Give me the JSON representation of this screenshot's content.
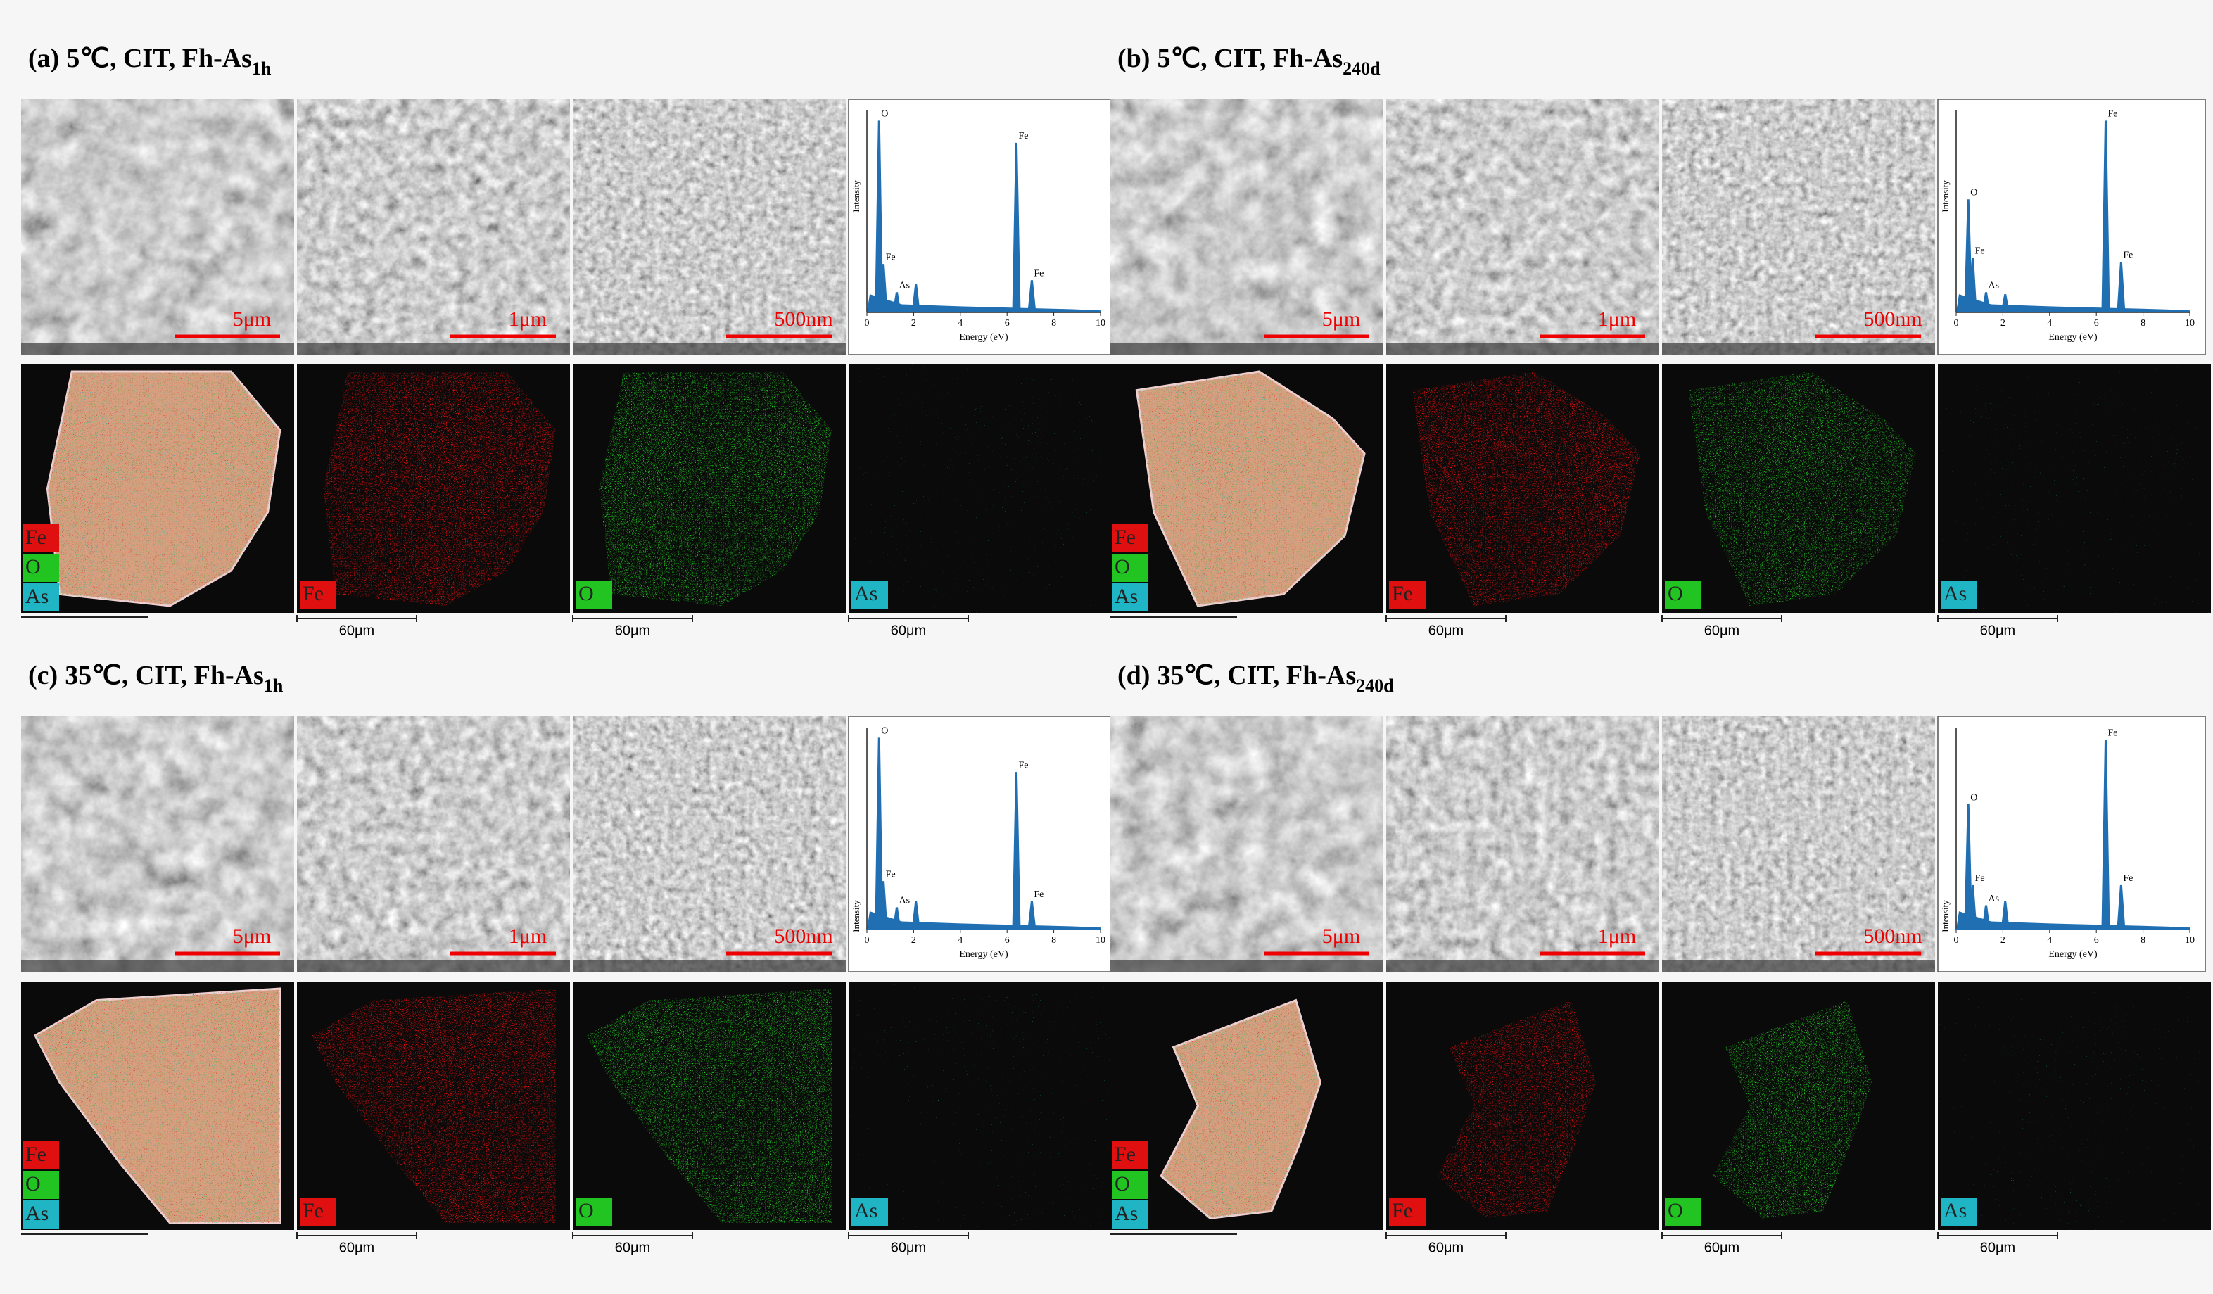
{
  "panels": [
    {
      "label": "(a)",
      "title": "5℃, CIT, Fh-As",
      "subscript": "1h",
      "sem_scale_bars": [
        "5μm",
        "1μm",
        "500nm"
      ],
      "eds": {
        "ylabel": "Intensity",
        "xlabel": "Energy (eV)",
        "xlim": [
          0,
          10
        ],
        "xticks": [
          0,
          2,
          4,
          6,
          8,
          10
        ],
        "ylim": [
          0,
          100
        ],
        "peaks": [
          {
            "label": "O",
            "x": 0.52,
            "y": 95
          },
          {
            "label": "Fe",
            "x": 0.71,
            "y": 24
          },
          {
            "label": "As",
            "x": 1.28,
            "y": 10
          },
          {
            "label": null,
            "x": 2.1,
            "y": 14
          },
          {
            "label": "Fe",
            "x": 6.4,
            "y": 84
          },
          {
            "label": "Fe",
            "x": 7.06,
            "y": 16
          }
        ]
      },
      "maps": {
        "elements": [
          "Fe",
          "O",
          "As"
        ],
        "colors": [
          "#e01010",
          "#22c422",
          "#1fb5c4"
        ],
        "scale_bar": "60μm"
      }
    },
    {
      "label": "(b)",
      "title": "5℃, CIT, Fh-As",
      "subscript": "240d",
      "sem_scale_bars": [
        "5μm",
        "1μm",
        "500nm"
      ],
      "eds": {
        "ylabel": "Intensity",
        "xlabel": "Energy (eV)",
        "xlim": [
          0,
          10
        ],
        "xticks": [
          0,
          2,
          4,
          6,
          8,
          10
        ],
        "ylim": [
          0,
          100
        ],
        "peaks": [
          {
            "label": "O",
            "x": 0.52,
            "y": 56
          },
          {
            "label": "Fe",
            "x": 0.71,
            "y": 27
          },
          {
            "label": "As",
            "x": 1.28,
            "y": 10
          },
          {
            "label": null,
            "x": 2.1,
            "y": 9
          },
          {
            "label": "Fe",
            "x": 6.4,
            "y": 95
          },
          {
            "label": "Fe",
            "x": 7.06,
            "y": 25
          }
        ]
      },
      "maps": {
        "elements": [
          "Fe",
          "O",
          "As"
        ],
        "colors": [
          "#e01010",
          "#22c422",
          "#1fb5c4"
        ],
        "scale_bar": "60μm"
      }
    },
    {
      "label": "(c)",
      "title": "35℃, CIT, Fh-As",
      "subscript": "1h",
      "sem_scale_bars": [
        "5μm",
        "1μm",
        "500nm"
      ],
      "eds": {
        "ylabel": "Intensity",
        "xlabel": "Energy (eV)",
        "xlim": [
          0,
          10
        ],
        "xticks": [
          0,
          2,
          4,
          6,
          8,
          10
        ],
        "ylim": [
          0,
          100
        ],
        "peaks": [
          {
            "label": "O",
            "x": 0.52,
            "y": 95
          },
          {
            "label": "Fe",
            "x": 0.71,
            "y": 24
          },
          {
            "label": "As",
            "x": 1.28,
            "y": 11
          },
          {
            "label": null,
            "x": 2.1,
            "y": 14
          },
          {
            "label": "Fe",
            "x": 6.4,
            "y": 78
          },
          {
            "label": "Fe",
            "x": 7.06,
            "y": 14
          }
        ]
      },
      "maps": {
        "elements": [
          "Fe",
          "O",
          "As"
        ],
        "colors": [
          "#e01010",
          "#22c422",
          "#1fb5c4"
        ],
        "scale_bar": "60μm"
      }
    },
    {
      "label": "(d)",
      "title": "35℃, CIT, Fh-As",
      "subscript": "240d",
      "sem_scale_bars": [
        "5μm",
        "1μm",
        "500nm"
      ],
      "eds": {
        "ylabel": "Intensity",
        "xlabel": "Energy (eV)",
        "xlim": [
          0,
          10
        ],
        "xticks": [
          0,
          2,
          4,
          6,
          8,
          10
        ],
        "ylim": [
          0,
          100
        ],
        "peaks": [
          {
            "label": "O",
            "x": 0.52,
            "y": 62
          },
          {
            "label": "Fe",
            "x": 0.71,
            "y": 22
          },
          {
            "label": "As",
            "x": 1.28,
            "y": 12
          },
          {
            "label": null,
            "x": 2.1,
            "y": 14
          },
          {
            "label": "Fe",
            "x": 6.4,
            "y": 94
          },
          {
            "label": "Fe",
            "x": 7.06,
            "y": 22
          }
        ]
      },
      "maps": {
        "elements": [
          "Fe",
          "O",
          "As"
        ],
        "colors": [
          "#e01010",
          "#22c422",
          "#1fb5c4"
        ],
        "scale_bar": "60μm"
      }
    }
  ]
}
